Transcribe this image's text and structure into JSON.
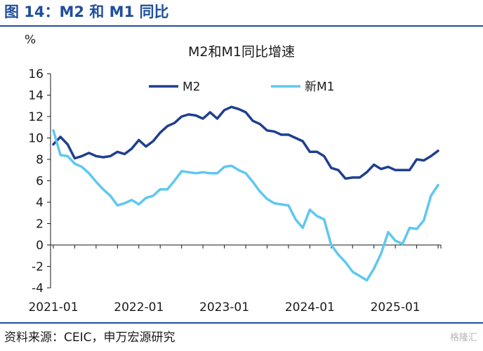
{
  "figure": {
    "title": "图 14：M2 和 M1 同比",
    "source": "资料来源：CEIC，申万宏源研究",
    "watermark": "格隆汇"
  },
  "chart_data": {
    "type": "line",
    "title": "M2和M1同比增速",
    "ylabel": "%",
    "xlabel": "",
    "ylim": [
      -4,
      16
    ],
    "yticks": [
      -4,
      -2,
      0,
      2,
      4,
      6,
      8,
      10,
      12,
      14,
      16
    ],
    "xlim": [
      "2021-01",
      "2025-07"
    ],
    "xtick_labels": [
      "2021-01",
      "2022-01",
      "2023-01",
      "2024-01",
      "2025-01"
    ],
    "legend_position": "top",
    "grid": false,
    "x": [
      "2021-01",
      "2021-02",
      "2021-03",
      "2021-04",
      "2021-05",
      "2021-06",
      "2021-07",
      "2021-08",
      "2021-09",
      "2021-10",
      "2021-11",
      "2021-12",
      "2022-01",
      "2022-02",
      "2022-03",
      "2022-04",
      "2022-05",
      "2022-06",
      "2022-07",
      "2022-08",
      "2022-09",
      "2022-10",
      "2022-11",
      "2022-12",
      "2023-01",
      "2023-02",
      "2023-03",
      "2023-04",
      "2023-05",
      "2023-06",
      "2023-07",
      "2023-08",
      "2023-09",
      "2023-10",
      "2023-11",
      "2023-12",
      "2024-01",
      "2024-02",
      "2024-03",
      "2024-04",
      "2024-05",
      "2024-06",
      "2024-07",
      "2024-08",
      "2024-09",
      "2024-10",
      "2024-11",
      "2024-12",
      "2025-01",
      "2025-02",
      "2025-03",
      "2025-04",
      "2025-05",
      "2025-06",
      "2025-07"
    ],
    "series": [
      {
        "name": "M2",
        "color": "#1f3f8f",
        "values": [
          9.4,
          10.1,
          9.4,
          8.1,
          8.3,
          8.6,
          8.3,
          8.2,
          8.3,
          8.7,
          8.5,
          9.0,
          9.8,
          9.2,
          9.7,
          10.5,
          11.1,
          11.4,
          12.0,
          12.2,
          12.1,
          11.8,
          12.4,
          11.8,
          12.6,
          12.9,
          12.7,
          12.4,
          11.6,
          11.3,
          10.7,
          10.6,
          10.3,
          10.3,
          10.0,
          9.7,
          8.7,
          8.7,
          8.3,
          7.2,
          7.0,
          6.2,
          6.3,
          6.3,
          6.8,
          7.5,
          7.1,
          7.3,
          7.0,
          7.0,
          7.0,
          8.0,
          7.9,
          8.3,
          8.8
        ]
      },
      {
        "name": "新M1",
        "color": "#5ec8f0",
        "values": [
          10.7,
          8.4,
          8.3,
          7.6,
          7.3,
          6.7,
          5.9,
          5.2,
          4.6,
          3.7,
          3.9,
          4.2,
          3.8,
          4.4,
          4.6,
          5.2,
          5.2,
          6.0,
          6.9,
          6.8,
          6.7,
          6.8,
          6.7,
          6.7,
          7.3,
          7.4,
          7.0,
          6.7,
          5.9,
          5.0,
          4.3,
          3.9,
          3.8,
          3.7,
          2.4,
          1.6,
          3.3,
          2.7,
          2.4,
          0.0,
          -0.9,
          -1.6,
          -2.5,
          -2.9,
          -3.3,
          -2.2,
          -0.8,
          1.2,
          0.4,
          0.1,
          1.6,
          1.5,
          2.3,
          4.6,
          5.6
        ]
      }
    ]
  }
}
